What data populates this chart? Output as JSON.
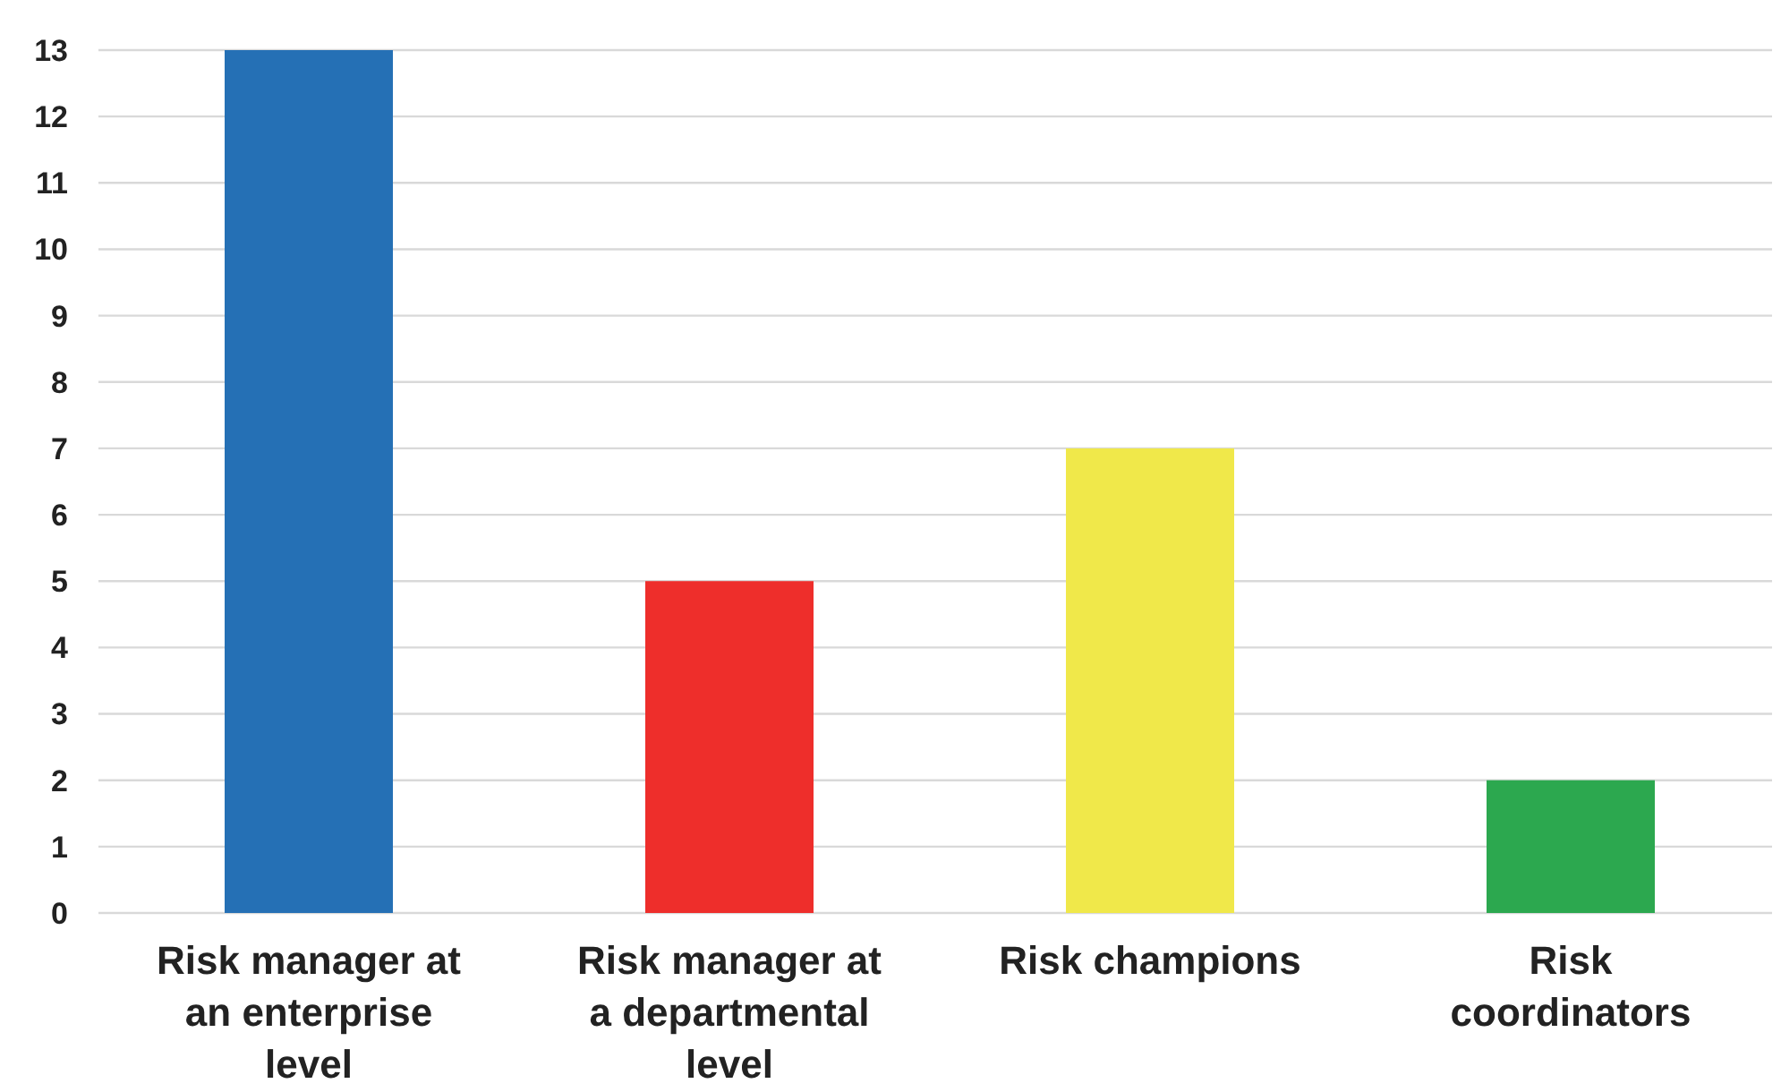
{
  "chart_data": {
    "type": "bar",
    "categories": [
      "Risk manager at an enterprise level",
      "Risk manager at a departmental level",
      "Risk champions",
      "Risk coordinators"
    ],
    "values": [
      13,
      5,
      7,
      2
    ],
    "colors": [
      "#2570b5",
      "#ee2e2b",
      "#f0e84a",
      "#2ca84f"
    ],
    "ylim": [
      0,
      13
    ],
    "yticks": [
      0,
      1,
      2,
      3,
      4,
      5,
      6,
      7,
      8,
      9,
      10,
      11,
      12,
      13
    ],
    "grid": "y"
  }
}
